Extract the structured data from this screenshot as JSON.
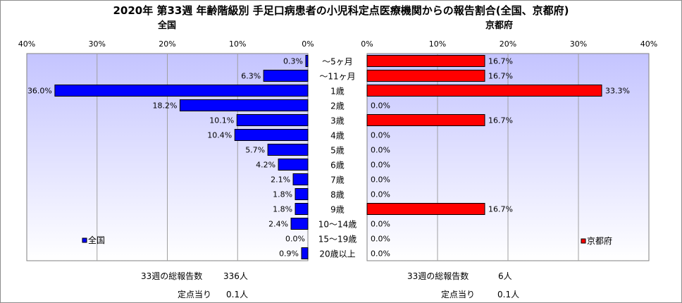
{
  "title": "2020年 第33週 年齢階級別 手足口病患者の小児科定点医療機関からの報告割合(全国、京都府)",
  "colors": {
    "national_bar": "#0000ff",
    "kyoto_bar": "#ff0000",
    "bar_outline": "#000000",
    "plot_top": "#c4c4ff",
    "plot_bottom": "#ffffff",
    "grid": "#a0a0a0"
  },
  "summary": {
    "national": {
      "total_label": "33週の総報告数",
      "total_value": "336人",
      "per_site_label": "定点当り",
      "per_site_value": "0.1人"
    },
    "kyoto": {
      "total_label": "33週の総報告数",
      "total_value": "6人",
      "per_site_label": "定点当り",
      "per_site_value": "0.1人"
    }
  },
  "chart_data": [
    {
      "type": "bar",
      "orientation": "horizontal",
      "title": "全国",
      "axis_direction": "reversed",
      "xlim": [
        0,
        40
      ],
      "xticks": [
        "40%",
        "30%",
        "20%",
        "10%",
        "0%"
      ],
      "categories": [
        "～5ヶ月",
        "～11ヶ月",
        "1歳",
        "2歳",
        "3歳",
        "4歳",
        "5歳",
        "6歳",
        "7歳",
        "8歳",
        "9歳",
        "10～14歳",
        "15～19歳",
        "20歳以上"
      ],
      "series": [
        {
          "name": "全国",
          "values": [
            0.3,
            6.3,
            36.0,
            18.2,
            10.1,
            10.4,
            5.7,
            4.2,
            2.1,
            1.8,
            1.8,
            2.4,
            0.0,
            0.9
          ],
          "labels": [
            "0.3%",
            "6.3%",
            "36.0%",
            "18.2%",
            "10.1%",
            "10.4%",
            "5.7%",
            "4.2%",
            "2.1%",
            "1.8%",
            "1.8%",
            "2.4%",
            "0.0%",
            "0.9%"
          ]
        }
      ],
      "grid": true,
      "legend": "bottom-left"
    },
    {
      "type": "bar",
      "orientation": "horizontal",
      "title": "京都府",
      "xlim": [
        0,
        40
      ],
      "xticks": [
        "0%",
        "10%",
        "20%",
        "30%",
        "40%"
      ],
      "categories": [
        "～5ヶ月",
        "～11ヶ月",
        "1歳",
        "2歳",
        "3歳",
        "4歳",
        "5歳",
        "6歳",
        "7歳",
        "8歳",
        "9歳",
        "10～14歳",
        "15～19歳",
        "20歳以上"
      ],
      "series": [
        {
          "name": "京都府",
          "values": [
            16.7,
            16.7,
            33.3,
            0.0,
            16.7,
            0.0,
            0.0,
            0.0,
            0.0,
            0.0,
            16.7,
            0.0,
            0.0,
            0.0
          ],
          "labels": [
            "16.7%",
            "16.7%",
            "33.3%",
            "0.0%",
            "16.7%",
            "0.0%",
            "0.0%",
            "0.0%",
            "0.0%",
            "0.0%",
            "16.7%",
            "0.0%",
            "0.0%",
            "0.0%"
          ]
        }
      ],
      "grid": true,
      "legend": "bottom-right"
    }
  ]
}
